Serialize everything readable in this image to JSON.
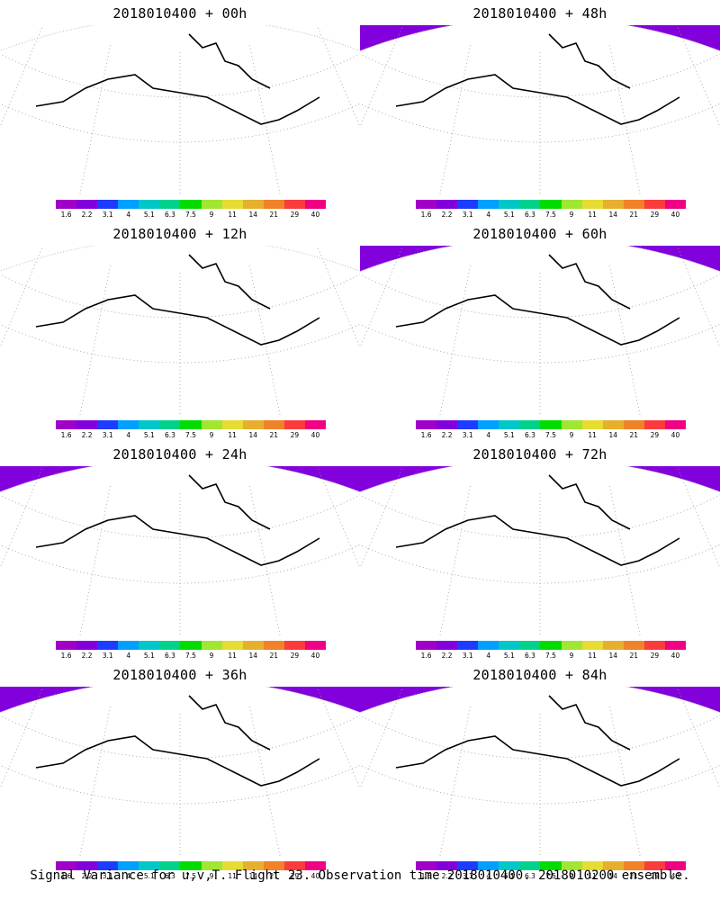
{
  "panels": [
    {
      "title": "2018010400 + 00h"
    },
    {
      "title": "2018010400 + 48h"
    },
    {
      "title": "2018010400 + 12h"
    },
    {
      "title": "2018010400 + 60h"
    },
    {
      "title": "2018010400 + 24h"
    },
    {
      "title": "2018010400 + 72h"
    },
    {
      "title": "2018010400 + 36h"
    },
    {
      "title": "2018010400 + 84h"
    }
  ],
  "colorbar": {
    "colors": [
      "#a000c8",
      "#8200dc",
      "#1e3cff",
      "#00a0ff",
      "#00c8c8",
      "#00d28c",
      "#00dc00",
      "#a0e632",
      "#e6dc32",
      "#e6af2d",
      "#f08228",
      "#fa3c3c",
      "#f00082"
    ],
    "labels": [
      "1.6",
      "2.2",
      "3.1",
      "4",
      "5.1",
      "6.3",
      "7.5",
      "9",
      "11",
      "14",
      "21",
      "29",
      "40"
    ]
  },
  "footer": "Signal Variance for u,v,T. Flight 23. Observation time 2018010400. 2018010200 ensemble."
}
